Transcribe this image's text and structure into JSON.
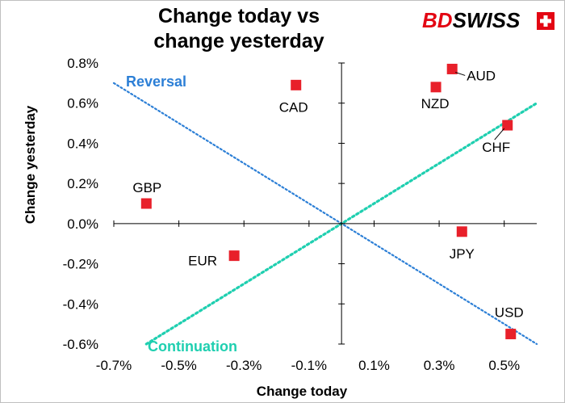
{
  "brand": {
    "name": "BDSWISS",
    "part1": "BD",
    "part2": "SWISS",
    "color_bd": "#e30613",
    "color_swiss": "#000000"
  },
  "chart_data": {
    "type": "scatter",
    "title_lines": [
      "Change today vs",
      "change yesterday"
    ],
    "xlabel": "Change today",
    "ylabel": "Change yesterday",
    "xlim": [
      -0.7,
      0.6
    ],
    "ylim": [
      -0.6,
      0.8
    ],
    "x_ticks": [
      -0.7,
      -0.5,
      -0.3,
      -0.1,
      0.1,
      0.3,
      0.5
    ],
    "x_tick_labels": [
      "-0.7%",
      "-0.5%",
      "-0.3%",
      "-0.1%",
      "0.1%",
      "0.3%",
      "0.5%"
    ],
    "y_ticks": [
      0.8,
      0.6,
      0.4,
      0.2,
      0.0,
      -0.2,
      -0.4,
      -0.6
    ],
    "y_tick_labels": [
      "0.8%",
      "0.6%",
      "0.4%",
      "0.2%",
      "0.0%",
      "-0.2%",
      "-0.4%",
      "-0.6%"
    ],
    "grid": false,
    "marker_color": "#e8202a",
    "points": [
      {
        "label": "AUD",
        "x": 0.34,
        "y": 0.77
      },
      {
        "label": "NZD",
        "x": 0.29,
        "y": 0.68
      },
      {
        "label": "CAD",
        "x": -0.14,
        "y": 0.69
      },
      {
        "label": "CHF",
        "x": 0.51,
        "y": 0.49
      },
      {
        "label": "GBP",
        "x": -0.6,
        "y": 0.1
      },
      {
        "label": "JPY",
        "x": 0.37,
        "y": -0.04
      },
      {
        "label": "EUR",
        "x": -0.33,
        "y": -0.16
      },
      {
        "label": "USD",
        "x": 0.52,
        "y": -0.55
      }
    ],
    "lines": [
      {
        "label": "Reversal",
        "color": "#2c7fd6",
        "from": [
          -0.7,
          0.7
        ],
        "to": [
          0.6,
          -0.6
        ]
      },
      {
        "label": "Continuation",
        "color": "#1fcfb0",
        "from": [
          -0.6,
          -0.6
        ],
        "to": [
          0.6,
          0.6
        ]
      }
    ]
  }
}
